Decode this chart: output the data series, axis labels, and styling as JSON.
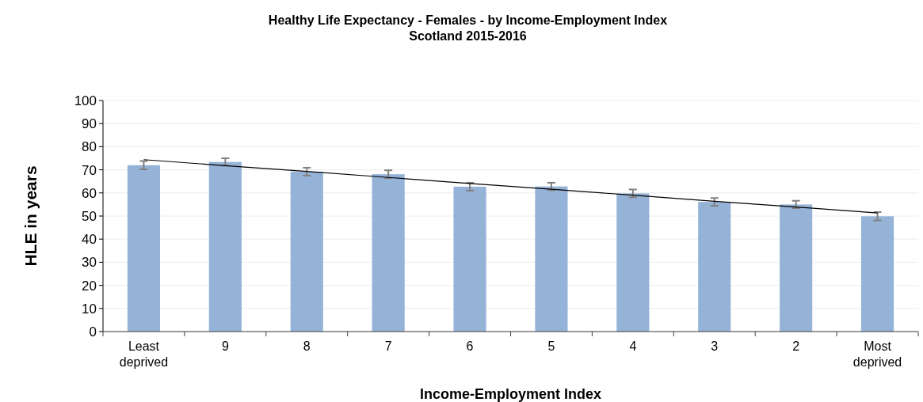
{
  "chart_data": {
    "type": "bar",
    "title": "Healthy Life Expectancy - Females - by Income-Employment Index",
    "subtitle": "Scotland 2015-2016",
    "xlabel": "Income-Employment Index",
    "ylabel": "HLE in years",
    "categories": [
      "Least deprived",
      "9",
      "8",
      "7",
      "6",
      "5",
      "4",
      "3",
      "2",
      "Most deprived"
    ],
    "series": [
      {
        "color": "#95b3d7",
        "values": [
          72.0,
          73.4,
          69.2,
          68.1,
          62.7,
          62.8,
          59.8,
          56.1,
          55.0,
          49.9
        ],
        "errors": [
          1.8,
          1.6,
          1.7,
          1.7,
          1.7,
          1.6,
          1.7,
          1.7,
          1.6,
          1.8
        ]
      },
      {
        "type": "line",
        "color": "#000000",
        "marker": "none",
        "values": [
          74.4,
          71.8,
          69.3,
          66.7,
          64.1,
          61.6,
          59.0,
          56.4,
          53.9,
          51.3
        ]
      }
    ],
    "ylim": [
      0,
      100
    ],
    "yticks": [
      0,
      10,
      20,
      30,
      40,
      50,
      60,
      70,
      80,
      90,
      100
    ],
    "grid": "y"
  }
}
